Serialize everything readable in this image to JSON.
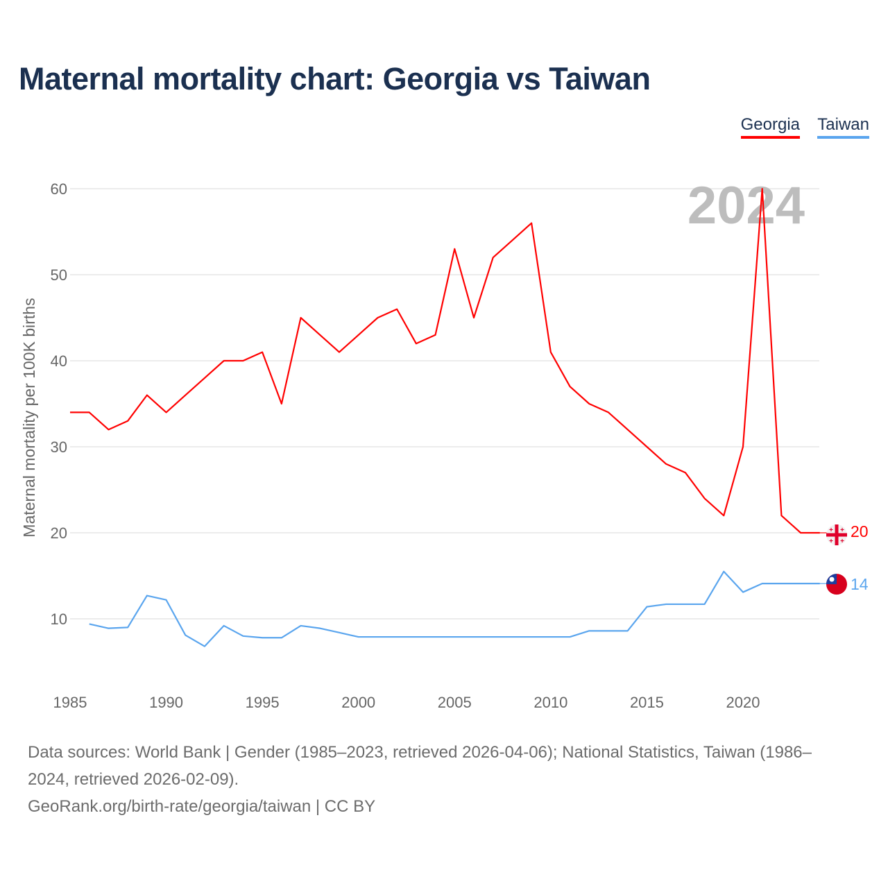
{
  "title": "Maternal mortality chart: Georgia vs Taiwan",
  "legend": [
    "Georgia",
    "Taiwan"
  ],
  "watermark_year": "2024",
  "end_labels": {
    "georgia": "20",
    "taiwan": "14"
  },
  "source_line1": "Data sources: World Bank | Gender (1985–2023, retrieved 2026-04-06); National Statistics, Taiwan (1986–2024, retrieved 2026-02-09).",
  "source_line2": "GeoRank.org/birth-rate/georgia/taiwan | CC BY",
  "chart_data": {
    "type": "line",
    "title": "Maternal mortality chart: Georgia vs Taiwan",
    "xlabel": "",
    "ylabel": "Maternal mortality per 100K births",
    "xlim": [
      1985,
      2024
    ],
    "ylim": [
      2,
      62
    ],
    "xticks": [
      1985,
      1990,
      1995,
      2000,
      2005,
      2010,
      2015,
      2020
    ],
    "yticks": [
      10,
      20,
      30,
      40,
      50,
      60
    ],
    "grid": true,
    "legend_position": "top-right",
    "series": [
      {
        "name": "Georgia",
        "color": "#ff0000",
        "x": [
          1985,
          1986,
          1987,
          1988,
          1989,
          1990,
          1991,
          1992,
          1993,
          1994,
          1995,
          1996,
          1997,
          1998,
          1999,
          2000,
          2001,
          2002,
          2003,
          2004,
          2005,
          2006,
          2007,
          2008,
          2009,
          2010,
          2011,
          2012,
          2013,
          2014,
          2015,
          2016,
          2017,
          2018,
          2019,
          2020,
          2021,
          2022,
          2023,
          2024
        ],
        "values": [
          34,
          34,
          32,
          33,
          36,
          34,
          36,
          38,
          40,
          40,
          41,
          35,
          45,
          43,
          41,
          43,
          45,
          46,
          42,
          43,
          53,
          45,
          52,
          54,
          56,
          41,
          37,
          35,
          34,
          32,
          30,
          28,
          27,
          24,
          22,
          30,
          60,
          22,
          20,
          20
        ]
      },
      {
        "name": "Taiwan",
        "color": "#5aa5ee",
        "x": [
          1986,
          1987,
          1988,
          1989,
          1990,
          1991,
          1992,
          1993,
          1994,
          1995,
          1996,
          1997,
          1998,
          1999,
          2000,
          2001,
          2002,
          2003,
          2004,
          2005,
          2006,
          2007,
          2008,
          2009,
          2010,
          2011,
          2012,
          2013,
          2014,
          2015,
          2016,
          2017,
          2018,
          2019,
          2020,
          2021,
          2022,
          2023,
          2024
        ],
        "values": [
          9.4,
          8.9,
          9.0,
          12.7,
          12.2,
          8.1,
          6.8,
          9.2,
          8.0,
          7.8,
          7.8,
          9.2,
          8.9,
          8.4,
          7.9,
          7.9,
          7.9,
          7.9,
          7.9,
          7.9,
          7.9,
          7.9,
          7.9,
          7.9,
          7.9,
          7.9,
          8.6,
          8.6,
          8.6,
          11.4,
          11.7,
          11.7,
          11.7,
          15.5,
          13.1,
          14.1,
          14.1,
          14.1,
          14.1
        ]
      }
    ]
  }
}
